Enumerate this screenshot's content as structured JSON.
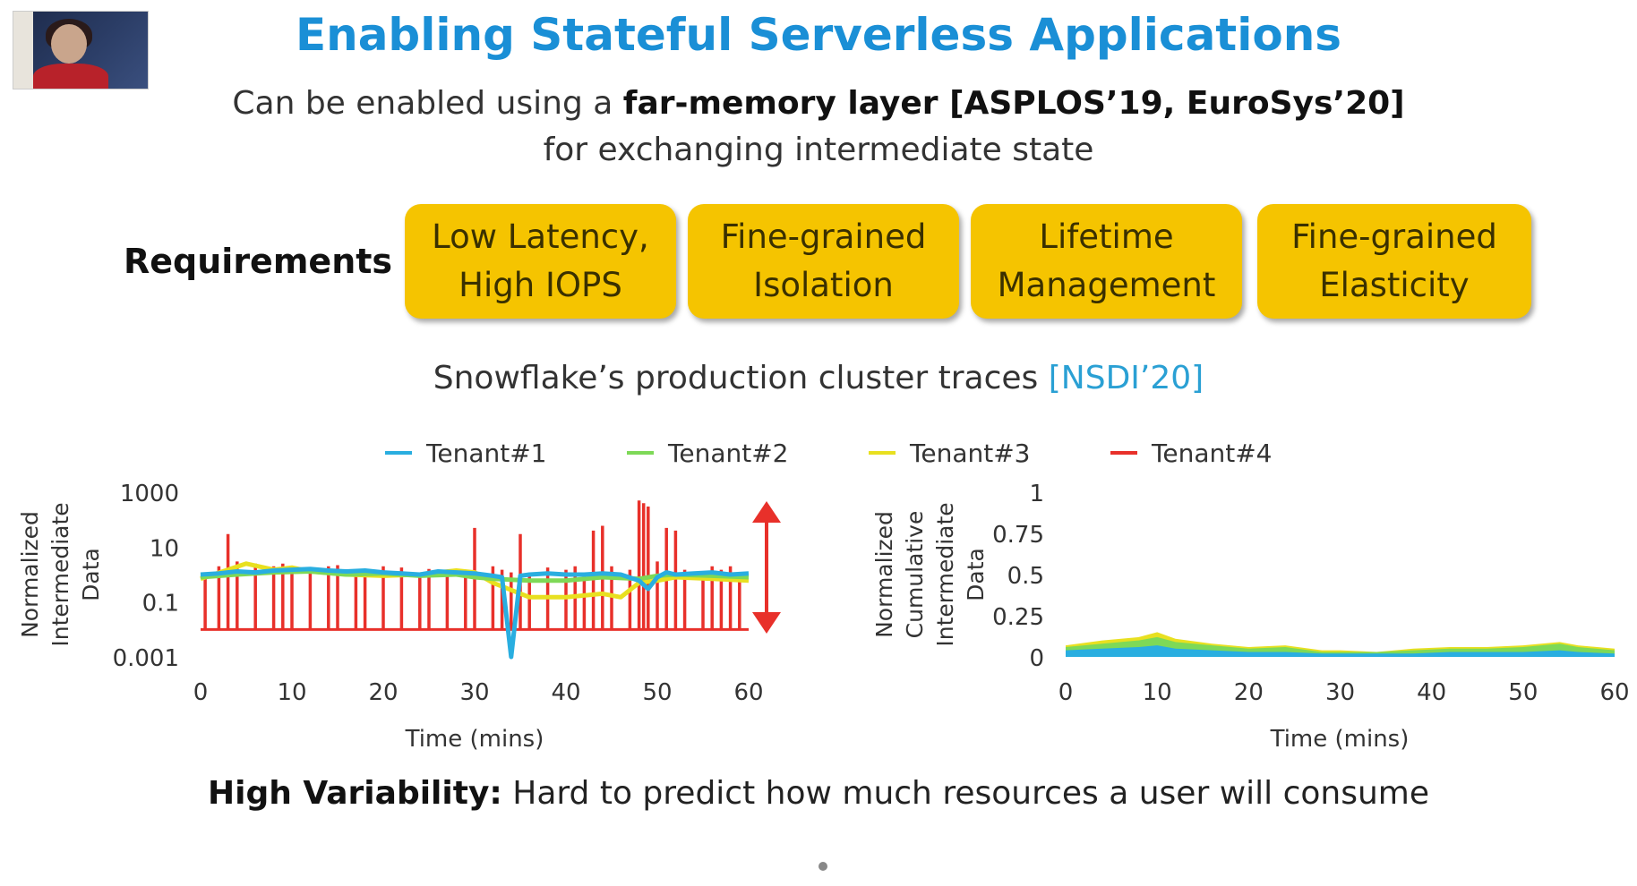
{
  "title": "Enabling Stateful Serverless Applications",
  "subtitle": {
    "pre": "Can be enabled using a ",
    "bold": "far-memory layer [ASPLOS’19, EuroSys’20]",
    "line2": "for exchanging intermediate state"
  },
  "requirements": {
    "label": "Requirements",
    "items": [
      "Low Latency,\nHigh IOPS",
      "Fine-grained\nIsolation",
      "Lifetime\nManagement",
      "Fine-grained\nElasticity"
    ],
    "box_color": "#f5c400"
  },
  "trace_title": {
    "text": "Snowflake’s production cluster traces ",
    "cite": "[NSDI’20]"
  },
  "legend": [
    {
      "name": "Tenant#1",
      "color": "#29aee0"
    },
    {
      "name": "Tenant#2",
      "color": "#7ed957"
    },
    {
      "name": "Tenant#3",
      "color": "#e8e020"
    },
    {
      "name": "Tenant#4",
      "color": "#e8302a"
    }
  ],
  "chart_data": [
    {
      "type": "line",
      "ylabel": "Normalized Intermediate Data",
      "xlabel": "Time (mins)",
      "y_scale": "log",
      "ylim": [
        0.001,
        1000
      ],
      "yticks": [
        "1000",
        "10",
        "0.1",
        "0.001"
      ],
      "xlim": [
        0,
        60
      ],
      "xticks": [
        "0",
        "10",
        "20",
        "30",
        "40",
        "50",
        "60"
      ],
      "baseline": 0.01,
      "series": [
        {
          "name": "Tenant#1",
          "x": [
            0,
            2,
            4,
            6,
            8,
            10,
            12,
            14,
            16,
            18,
            20,
            22,
            24,
            26,
            28,
            30,
            32,
            33,
            34,
            35,
            36,
            38,
            40,
            42,
            44,
            46,
            48,
            49,
            50,
            51,
            52,
            54,
            56,
            58,
            60
          ],
          "values": [
            1.0,
            1.1,
            1.3,
            1.2,
            1.4,
            1.5,
            1.6,
            1.4,
            1.3,
            1.4,
            1.2,
            1.1,
            1.0,
            1.3,
            1.2,
            1.1,
            0.9,
            0.8,
            0.001,
            0.9,
            1.0,
            1.1,
            1.0,
            1.0,
            1.1,
            1.0,
            0.6,
            0.3,
            0.8,
            1.2,
            1.0,
            1.1,
            1.2,
            1.0,
            1.1
          ]
        },
        {
          "name": "Tenant#2",
          "x": [
            0,
            4,
            8,
            12,
            16,
            20,
            24,
            28,
            30,
            32,
            36,
            40,
            44,
            48,
            50,
            52,
            56,
            60
          ],
          "values": [
            0.8,
            1.0,
            1.2,
            1.3,
            1.0,
            1.1,
            0.9,
            1.0,
            0.8,
            0.7,
            0.6,
            0.6,
            0.8,
            0.7,
            0.9,
            1.0,
            0.9,
            0.8
          ]
        },
        {
          "name": "Tenant#3",
          "x": [
            0,
            5,
            8,
            10,
            12,
            16,
            20,
            24,
            28,
            30,
            32,
            36,
            40,
            44,
            46,
            48,
            50,
            52,
            56,
            60
          ],
          "values": [
            0.7,
            2.5,
            1.5,
            1.8,
            1.3,
            1.0,
            0.9,
            1.0,
            1.4,
            1.2,
            0.5,
            0.15,
            0.15,
            0.2,
            0.15,
            0.5,
            0.6,
            0.8,
            0.7,
            0.6
          ]
        }
      ],
      "spikes": {
        "name": "Tenant#4",
        "x": [
          0.5,
          2,
          3,
          4,
          6,
          8,
          9,
          10,
          12,
          14,
          15,
          17,
          18,
          20,
          22,
          24,
          25,
          27,
          29,
          30,
          32,
          33,
          34,
          35,
          36,
          38,
          40,
          41,
          42,
          43,
          44,
          45,
          47,
          48,
          48.5,
          49,
          50,
          51,
          52,
          53,
          55,
          56,
          57,
          58,
          59
        ],
        "values": [
          1.0,
          2.0,
          30,
          3.0,
          2.5,
          2.0,
          2.5,
          1.5,
          1.8,
          2.0,
          2.2,
          1.5,
          1.0,
          2.0,
          1.8,
          1.2,
          1.6,
          1.0,
          1.5,
          50,
          2.0,
          1.5,
          1.2,
          30,
          1.0,
          1.8,
          1.5,
          2.0,
          1.2,
          40,
          60,
          2.0,
          1.5,
          500,
          400,
          300,
          3.0,
          50,
          40,
          1.5,
          1.0,
          2.0,
          1.5,
          2.0,
          1.0
        ]
      }
    },
    {
      "type": "area",
      "ylabel": "Normalized Cumulative Intermediate Data",
      "xlabel": "Time (mins)",
      "ylim": [
        0,
        1
      ],
      "yticks": [
        "1",
        "0.75",
        "0.5",
        "0.25",
        "0"
      ],
      "xlim": [
        0,
        60
      ],
      "xticks": [
        "0",
        "10",
        "20",
        "30",
        "40",
        "50",
        "60"
      ],
      "series": [
        {
          "name": "Tenant#1",
          "x": [
            0,
            4,
            8,
            10,
            12,
            16,
            20,
            24,
            28,
            30,
            34,
            38,
            42,
            46,
            50,
            54,
            56,
            60
          ],
          "values": [
            0.04,
            0.05,
            0.06,
            0.07,
            0.05,
            0.04,
            0.03,
            0.03,
            0.02,
            0.02,
            0.02,
            0.02,
            0.03,
            0.03,
            0.03,
            0.04,
            0.03,
            0.02
          ]
        },
        {
          "name": "Tenant#2",
          "x": [
            0,
            4,
            8,
            10,
            12,
            16,
            20,
            24,
            28,
            30,
            34,
            38,
            42,
            46,
            50,
            54,
            56,
            60
          ],
          "values": [
            0.02,
            0.03,
            0.04,
            0.05,
            0.04,
            0.03,
            0.02,
            0.03,
            0.01,
            0.01,
            0.01,
            0.02,
            0.02,
            0.02,
            0.03,
            0.04,
            0.03,
            0.02
          ]
        },
        {
          "name": "Tenant#3",
          "x": [
            0,
            4,
            8,
            10,
            12,
            16,
            20,
            24,
            28,
            30,
            34,
            38,
            42,
            46,
            50,
            54,
            56,
            60
          ],
          "values": [
            0.01,
            0.02,
            0.02,
            0.03,
            0.02,
            0.01,
            0.01,
            0.01,
            0.01,
            0.01,
            0.0,
            0.01,
            0.01,
            0.01,
            0.01,
            0.01,
            0.01,
            0.01
          ]
        }
      ]
    }
  ],
  "bottom_text": {
    "bold": "High Variability:",
    "rest": " Hard to predict how much resources a user will consume"
  }
}
